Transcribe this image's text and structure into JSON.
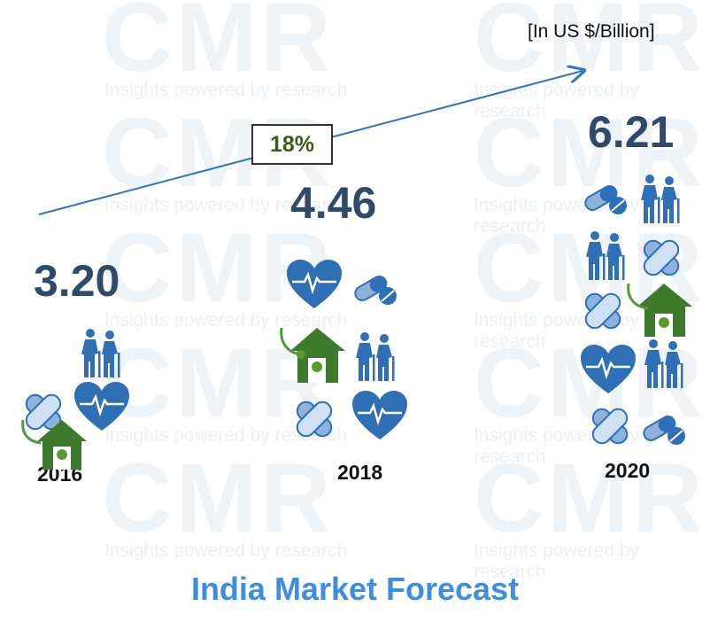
{
  "watermark": {
    "brand": "CMR",
    "tagline": "Insights powered by research"
  },
  "unit_label": "[In US $/Billion]",
  "cagr_label": "18%",
  "title": "India Market Forecast",
  "chart_data": {
    "type": "bar",
    "title": "India Market Forecast",
    "unit": "[In US $/Billion]",
    "categories": [
      "2016",
      "2018",
      "2020"
    ],
    "values": [
      3.2,
      4.46,
      6.21
    ],
    "value_labels": [
      "3.20",
      "4.46",
      "6.21"
    ],
    "annotations": [
      {
        "text": "18%",
        "meaning": "growth arrow"
      }
    ],
    "ylim": [
      0,
      7
    ]
  },
  "colors": {
    "icon_blue": "#2f6fb5",
    "icon_green": "#3e7a2c",
    "value_text": "#2f4a6b",
    "title": "#3d8ee0"
  },
  "icon_stacks": {
    "y2016": [
      "elderly-icon",
      "bandage-icon",
      "heart-icon",
      "home-care-icon"
    ],
    "y2018": [
      "heart-icon",
      "pill-icon",
      "home-care-icon",
      "elderly-icon",
      "bandage-icon",
      "heart-icon"
    ],
    "y2020": [
      "pill-icon",
      "elderly-icon",
      "elderly-icon",
      "bandage-icon",
      "bandage-icon",
      "home-care-icon",
      "heart-icon",
      "elderly-icon",
      "bandage-icon",
      "pill-icon"
    ]
  }
}
